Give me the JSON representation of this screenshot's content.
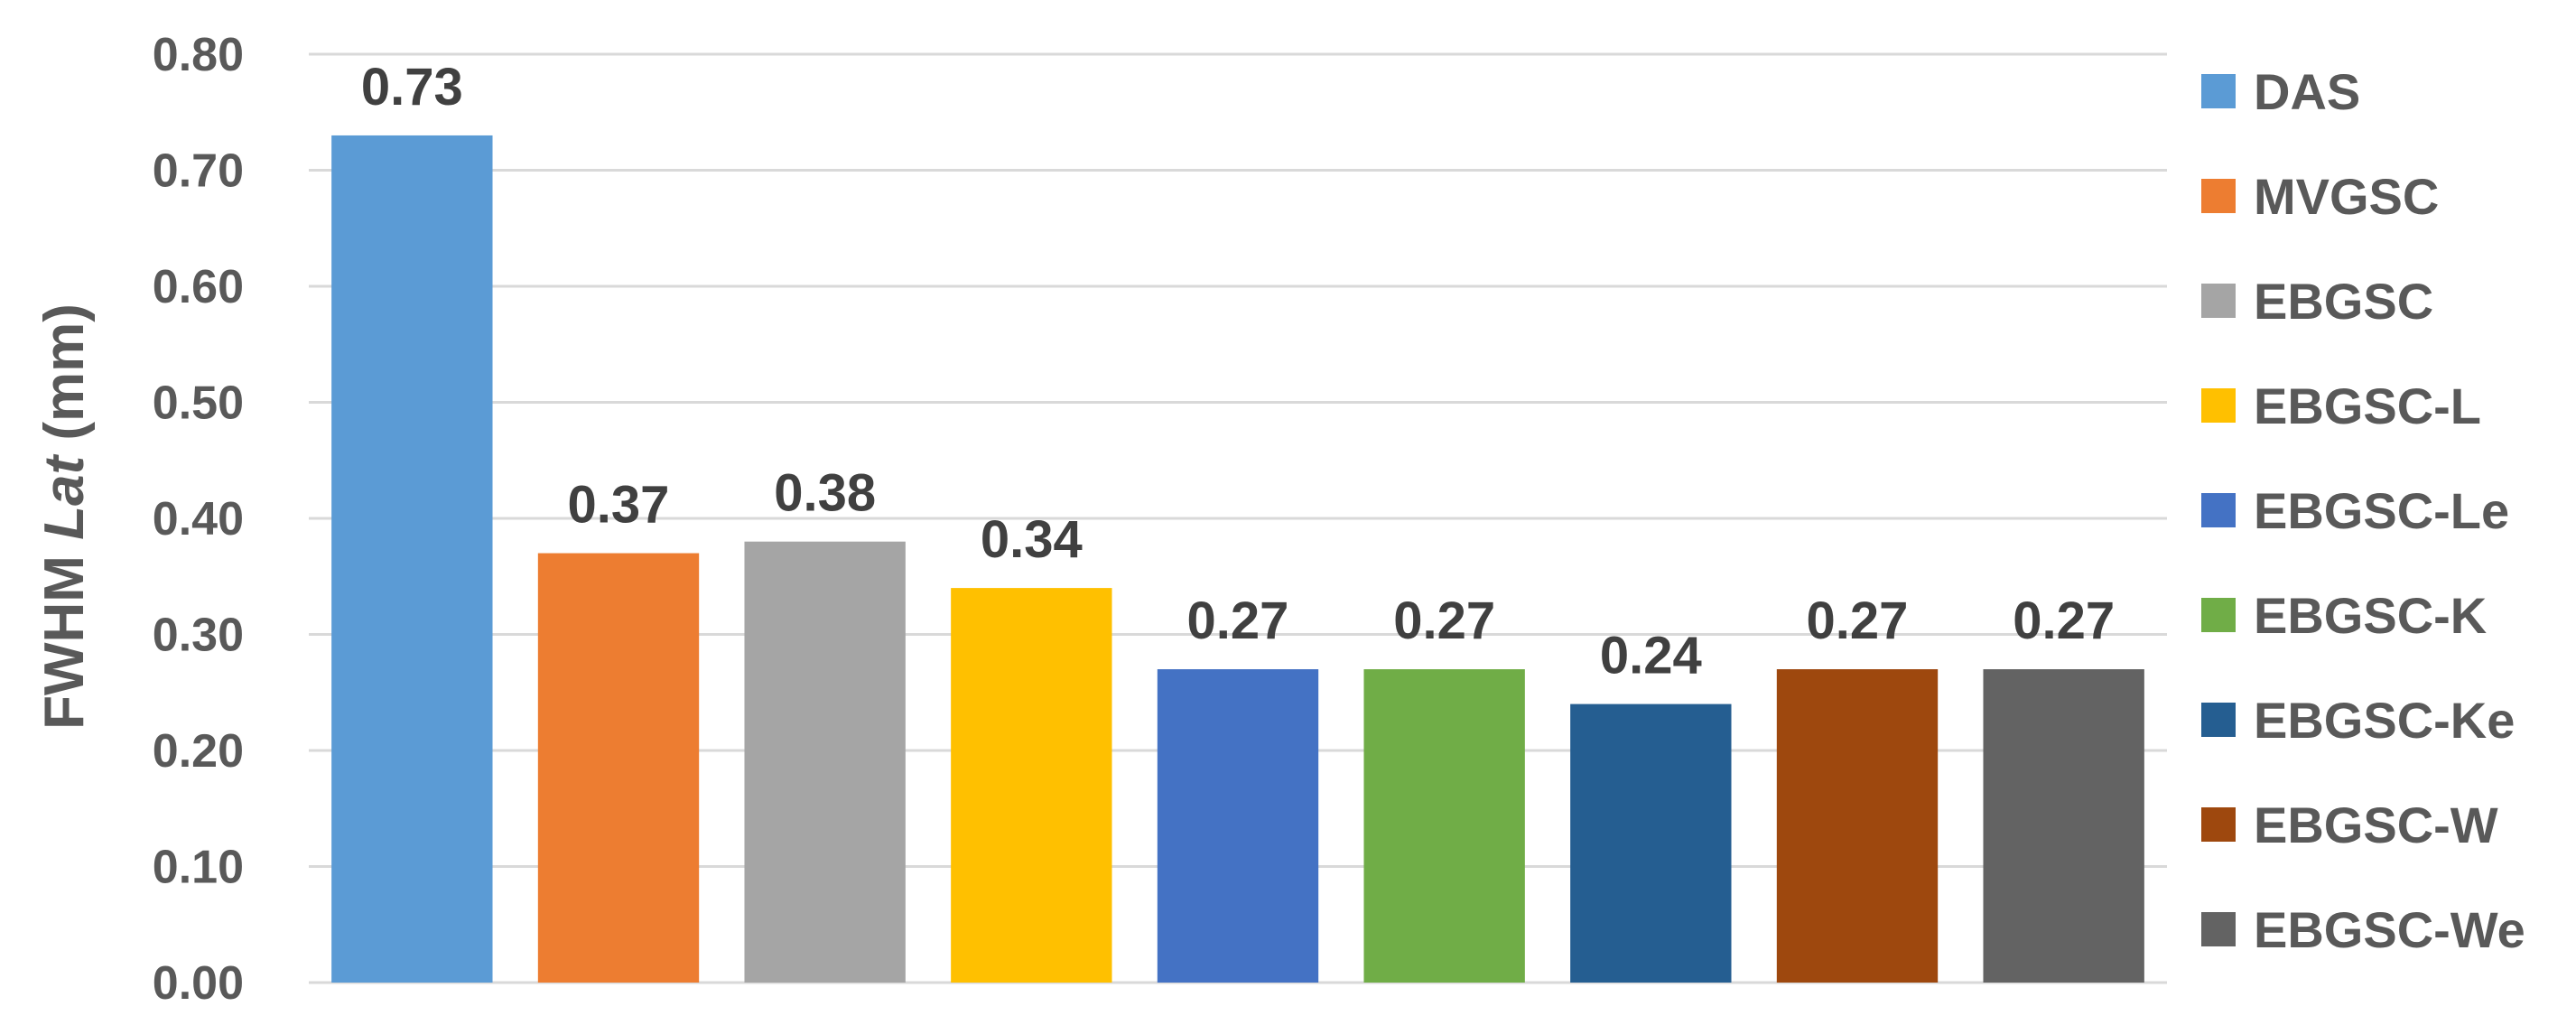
{
  "chart_data": {
    "type": "bar",
    "title": "",
    "xlabel": "",
    "ylabel_parts": {
      "prefix": "FWHM ",
      "italic": "Lat",
      "suffix": " (mm)"
    },
    "ylim": [
      0,
      0.8
    ],
    "y_ticks": [
      "0.00",
      "0.10",
      "0.20",
      "0.30",
      "0.40",
      "0.50",
      "0.60",
      "0.70",
      "0.80"
    ],
    "grid": true,
    "legend_position": "right",
    "series": [
      {
        "name": "DAS",
        "value": 0.73,
        "label": "0.73",
        "color": "#5B9BD5"
      },
      {
        "name": "MVGSC",
        "value": 0.37,
        "label": "0.37",
        "color": "#ED7D31"
      },
      {
        "name": "EBGSC",
        "value": 0.38,
        "label": "0.38",
        "color": "#A5A5A5"
      },
      {
        "name": "EBGSC-L",
        "value": 0.34,
        "label": "0.34",
        "color": "#FFC000"
      },
      {
        "name": "EBGSC-Le",
        "value": 0.27,
        "label": "0.27",
        "color": "#4472C4"
      },
      {
        "name": "EBGSC-K",
        "value": 0.27,
        "label": "0.27",
        "color": "#70AD47"
      },
      {
        "name": "EBGSC-Ke",
        "value": 0.24,
        "label": "0.24",
        "color": "#255E91"
      },
      {
        "name": "EBGSC-W",
        "value": 0.27,
        "label": "0.27",
        "color": "#9E480E"
      },
      {
        "name": "EBGSC-We",
        "value": 0.27,
        "label": "0.27",
        "color": "#636363"
      }
    ]
  }
}
